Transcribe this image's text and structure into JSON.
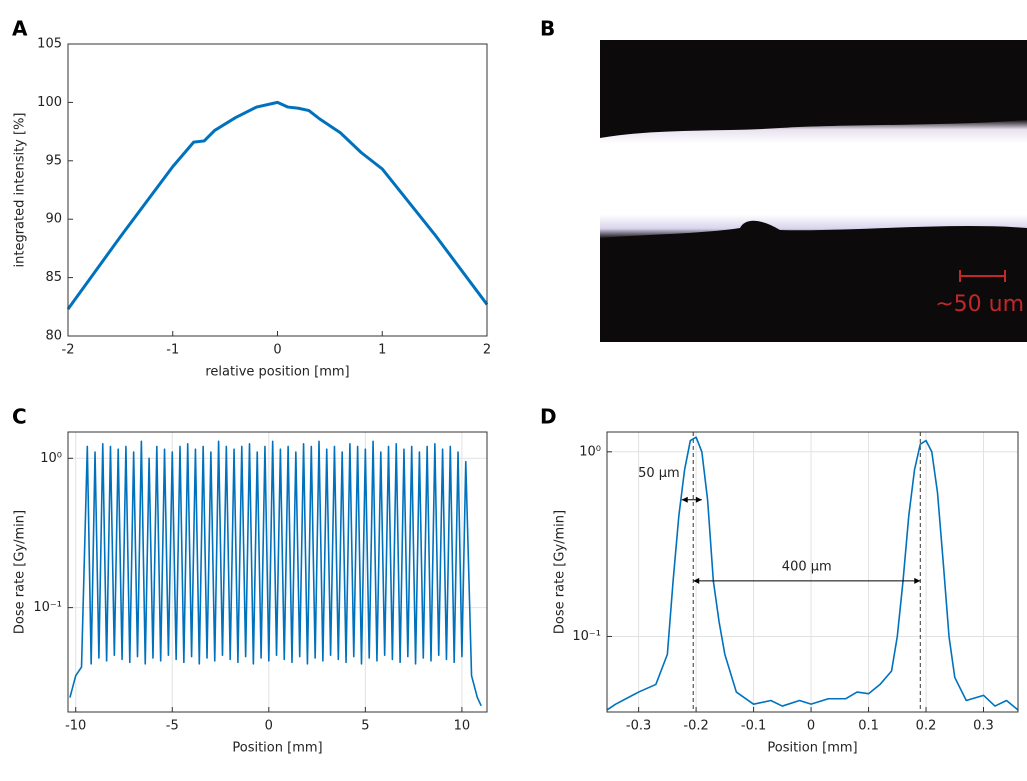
{
  "chart_data": [
    {
      "type": "line",
      "panel": "A",
      "ylabel": "integrated intensity [%]",
      "xlabel": "relative position [mm]",
      "color": "#0072bd",
      "log_y": false,
      "grid": false,
      "x": [
        -2,
        -1.5,
        -1,
        -0.8,
        -0.7,
        -0.6,
        -0.4,
        -0.2,
        0,
        0.1,
        0.2,
        0.3,
        0.4,
        0.6,
        0.8,
        1,
        1.5,
        2
      ],
      "values": [
        82.3,
        88.5,
        94.5,
        96.6,
        96.7,
        97.6,
        98.7,
        99.6,
        100,
        99.6,
        99.5,
        99.3,
        98.6,
        97.4,
        95.7,
        94.3,
        88.7,
        82.7
      ],
      "xlim": [
        -2,
        2
      ],
      "xticks": [
        -2,
        -1,
        0,
        1,
        2
      ],
      "ylim": [
        80,
        105
      ],
      "yticks": [
        80,
        85,
        90,
        95,
        100,
        105
      ]
    },
    {
      "type": "image",
      "panel": "B",
      "scale_label": "~50 um"
    },
    {
      "type": "line",
      "panel": "C",
      "ylabel": "Dose rate [Gy/min]",
      "xlabel": "Position [mm]",
      "color": "#0072bd",
      "log_y": true,
      "grid": true,
      "x": [
        -10.3,
        -10,
        -9.7,
        -9.4,
        -9.2,
        -9,
        -8.8,
        -8.6,
        -8.4,
        -8.2,
        -8,
        -7.8,
        -7.6,
        -7.4,
        -7.2,
        -7,
        -6.8,
        -6.6,
        -6.4,
        -6.2,
        -6,
        -5.8,
        -5.6,
        -5.4,
        -5.2,
        -5,
        -4.8,
        -4.6,
        -4.4,
        -4.2,
        -4,
        -3.8,
        -3.6,
        -3.4,
        -3.2,
        -3,
        -2.8,
        -2.6,
        -2.4,
        -2.2,
        -2,
        -1.8,
        -1.6,
        -1.4,
        -1.2,
        -1,
        -0.8,
        -0.6,
        -0.4,
        -0.2,
        0,
        0.2,
        0.4,
        0.6,
        0.8,
        1,
        1.2,
        1.4,
        1.6,
        1.8,
        2,
        2.2,
        2.4,
        2.6,
        2.8,
        3,
        3.2,
        3.4,
        3.6,
        3.8,
        4,
        4.2,
        4.4,
        4.6,
        4.8,
        5,
        5.2,
        5.4,
        5.6,
        5.8,
        6,
        6.2,
        6.4,
        6.6,
        6.8,
        7,
        7.2,
        7.4,
        7.6,
        7.8,
        8,
        8.2,
        8.4,
        8.6,
        8.8,
        9,
        9.2,
        9.4,
        9.6,
        9.8,
        10,
        10.2,
        10.5,
        10.8,
        11
      ],
      "values": [
        0.025,
        0.035,
        0.04,
        1.2,
        0.042,
        1.1,
        0.046,
        1.25,
        0.044,
        1.2,
        0.048,
        1.15,
        0.045,
        1.2,
        0.043,
        1.1,
        0.047,
        1.3,
        0.042,
        1.0,
        0.046,
        1.2,
        0.044,
        1.15,
        0.048,
        1.1,
        0.045,
        1.2,
        0.043,
        1.25,
        0.047,
        1.15,
        0.042,
        1.2,
        0.046,
        1.1,
        0.044,
        1.3,
        0.048,
        1.2,
        0.045,
        1.15,
        0.043,
        1.2,
        0.047,
        1.25,
        0.042,
        1.1,
        0.046,
        1.2,
        0.044,
        1.3,
        0.048,
        1.15,
        0.045,
        1.2,
        0.043,
        1.1,
        0.047,
        1.25,
        0.042,
        1.2,
        0.046,
        1.3,
        0.044,
        1.15,
        0.048,
        1.2,
        0.045,
        1.1,
        0.043,
        1.25,
        0.047,
        1.2,
        0.042,
        1.15,
        0.046,
        1.3,
        0.044,
        1.1,
        0.048,
        1.2,
        0.045,
        1.25,
        0.043,
        1.15,
        0.047,
        1.2,
        0.042,
        1.1,
        0.046,
        1.2,
        0.044,
        1.25,
        0.048,
        1.15,
        0.045,
        1.2,
        0.043,
        1.1,
        0.047,
        0.95,
        0.035,
        0.025,
        0.022
      ],
      "xlim": [
        -10.4,
        11.3
      ],
      "xticks": [
        -10,
        -5,
        0,
        5,
        10
      ],
      "ylim": [
        0.02,
        1.5
      ],
      "yticks": [
        {
          "value": 0.1,
          "label": "10⁻¹"
        },
        {
          "value": 1,
          "label": "10⁰"
        }
      ]
    },
    {
      "type": "line",
      "panel": "D",
      "ylabel": "Dose rate [Gy/min]",
      "xlabel": "Position [mm]",
      "color": "#0072bd",
      "log_y": true,
      "grid": true,
      "x": [
        -0.355,
        -0.34,
        -0.3,
        -0.27,
        -0.25,
        -0.24,
        -0.23,
        -0.22,
        -0.21,
        -0.2,
        -0.19,
        -0.18,
        -0.17,
        -0.16,
        -0.15,
        -0.13,
        -0.1,
        -0.07,
        -0.05,
        -0.02,
        0,
        0.03,
        0.06,
        0.08,
        0.1,
        0.12,
        0.14,
        0.15,
        0.16,
        0.17,
        0.18,
        0.19,
        0.2,
        0.21,
        0.22,
        0.23,
        0.24,
        0.25,
        0.27,
        0.3,
        0.32,
        0.34,
        0.36
      ],
      "values": [
        0.04,
        0.043,
        0.05,
        0.055,
        0.08,
        0.2,
        0.45,
        0.8,
        1.15,
        1.2,
        1.0,
        0.55,
        0.2,
        0.12,
        0.08,
        0.05,
        0.043,
        0.045,
        0.042,
        0.045,
        0.043,
        0.046,
        0.046,
        0.05,
        0.049,
        0.055,
        0.065,
        0.1,
        0.2,
        0.45,
        0.8,
        1.1,
        1.15,
        1.0,
        0.6,
        0.25,
        0.1,
        0.06,
        0.045,
        0.048,
        0.042,
        0.045,
        0.04
      ],
      "xlim": [
        -0.355,
        0.36
      ],
      "xticks": [
        -0.3,
        -0.2,
        -0.1,
        0,
        0.1,
        0.2,
        0.3
      ],
      "ylim": [
        0.039,
        1.28
      ],
      "yticks": [
        {
          "value": 0.1,
          "label": "10⁻¹"
        },
        {
          "value": 1,
          "label": "10⁰"
        }
      ],
      "vlines": [
        -0.205,
        0.19
      ],
      "annotations": [
        {
          "text": "50 µm",
          "x0": -0.225,
          "x1": -0.19,
          "y": 0.55
        },
        {
          "text": "400 µm",
          "x0": -0.205,
          "x1": 0.19,
          "y": 0.2
        }
      ]
    }
  ]
}
